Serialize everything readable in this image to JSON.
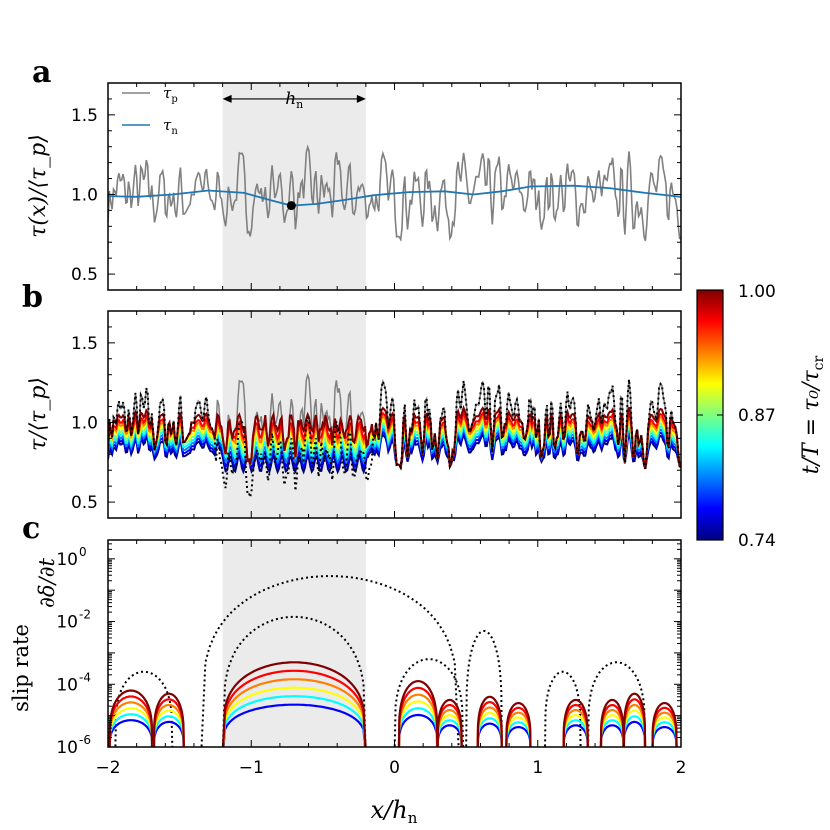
{
  "figure": {
    "panel_letters": [
      "a",
      "b",
      "c"
    ],
    "x_axis_label": "x/h",
    "x_axis_label_sub": "n",
    "colorbar_label": "t/T = τ₀/τ",
    "colorbar_label_sub": "cr",
    "colorbar_ticks": [
      "1.00",
      "0.87",
      "0.74"
    ]
  },
  "colors": {
    "tau_p": "#808080",
    "tau_n": "#1f77b4",
    "shade": "#ebebeb",
    "colormap": [
      "#00007f",
      "#0000ff",
      "#007fff",
      "#00ffff",
      "#7fff7f",
      "#ffff00",
      "#ff7f00",
      "#ff0000",
      "#7f0000"
    ]
  },
  "chart_data": [
    {
      "id": "a",
      "type": "line",
      "ylabel": "τ(x)/⟨τ_p⟩",
      "xlim": [
        -2.0,
        2.0
      ],
      "ylim": [
        0.4,
        1.7
      ],
      "yticks": [
        "0.5",
        "1.0",
        "1.5"
      ],
      "shaded_region": [
        -1.2,
        -0.2
      ],
      "annotation": {
        "text": "h",
        "sub": "n",
        "from": -1.2,
        "to": -0.2,
        "y": 1.6
      },
      "legend": [
        {
          "symbol": "τ",
          "sub": "p"
        },
        {
          "symbol": "τ",
          "sub": "n"
        }
      ],
      "marker": {
        "x": -0.72,
        "y": 0.93
      },
      "series": [
        {
          "name": "τp",
          "seed": 7,
          "base": 1.0,
          "amplitude": 0.3,
          "min": 0.68,
          "max": 1.55
        },
        {
          "name": "τn",
          "points": [
            [
              -2.0,
              0.99
            ],
            [
              -1.8,
              0.985
            ],
            [
              -1.55,
              1.0
            ],
            [
              -1.3,
              1.025
            ],
            [
              -1.05,
              1.01
            ],
            [
              -0.85,
              0.96
            ],
            [
              -0.72,
              0.93
            ],
            [
              -0.55,
              0.94
            ],
            [
              -0.35,
              0.965
            ],
            [
              -0.15,
              0.995
            ],
            [
              0.1,
              1.015
            ],
            [
              0.35,
              1.02
            ],
            [
              0.55,
              1.0
            ],
            [
              0.75,
              1.02
            ],
            [
              0.95,
              1.05
            ],
            [
              1.25,
              1.055
            ],
            [
              1.5,
              1.04
            ],
            [
              1.75,
              1.01
            ],
            [
              2.0,
              0.985
            ]
          ]
        }
      ]
    },
    {
      "id": "b",
      "type": "line",
      "ylabel": "τ/⟨τ_p⟩",
      "xlim": [
        -2.0,
        2.0
      ],
      "ylim": [
        0.4,
        1.7
      ],
      "yticks": [
        "0.5",
        "1.0",
        "1.5"
      ],
      "shaded_region": [
        -1.2,
        -0.2
      ],
      "levels": [
        0.74,
        0.77,
        0.8,
        0.83,
        0.86,
        0.89,
        0.92,
        0.95,
        1.0
      ]
    },
    {
      "id": "c",
      "type": "line",
      "ylabel": "slip rate",
      "ylabel2": "∂δ/∂t",
      "yscale": "log",
      "xlim": [
        -2.0,
        2.0
      ],
      "ylim_log10": [
        -6,
        0.6
      ],
      "ytick_bases": [
        "10",
        "10",
        "10",
        "10"
      ],
      "ytick_exponents": [
        "0",
        "-2",
        "-4",
        "-6"
      ],
      "xticks": [
        "−2",
        "−1",
        "0",
        "1",
        "2"
      ],
      "shaded_region": [
        -1.2,
        -0.2
      ],
      "dotted_arches": [
        {
          "x0": -1.35,
          "x1": 0.45,
          "peak_log10": -0.55
        },
        {
          "x0": -1.2,
          "x1": -0.2,
          "peak_log10": -1.85
        },
        {
          "x0": 0.0,
          "x1": 0.48,
          "peak_log10": -3.2
        },
        {
          "x0": 0.5,
          "x1": 0.75,
          "peak_log10": -2.3
        },
        {
          "x0": 1.35,
          "x1": 1.75,
          "peak_log10": -3.3
        },
        {
          "x0": -1.95,
          "x1": -1.55,
          "peak_log10": -3.6
        },
        {
          "x0": 1.05,
          "x1": 1.3,
          "peak_log10": -3.6
        }
      ],
      "arch_groups": [
        {
          "x0": -1.99,
          "x1": -1.69,
          "peak_log10": -4.2
        },
        {
          "x0": -1.68,
          "x1": -1.47,
          "peak_log10": -4.3
        },
        {
          "x0": -1.2,
          "x1": -0.2,
          "peak_log10": -3.3
        },
        {
          "x0": 0.03,
          "x1": 0.3,
          "peak_log10": -3.9
        },
        {
          "x0": 0.3,
          "x1": 0.47,
          "peak_log10": -4.5
        },
        {
          "x0": 0.58,
          "x1": 0.75,
          "peak_log10": -4.4
        },
        {
          "x0": 0.78,
          "x1": 0.95,
          "peak_log10": -4.6
        },
        {
          "x0": 1.18,
          "x1": 1.35,
          "peak_log10": -4.5
        },
        {
          "x0": 1.44,
          "x1": 1.6,
          "peak_log10": -4.5
        },
        {
          "x0": 1.6,
          "x1": 1.75,
          "peak_log10": -4.3
        },
        {
          "x0": 1.8,
          "x1": 1.97,
          "peak_log10": -4.6
        }
      ]
    }
  ]
}
